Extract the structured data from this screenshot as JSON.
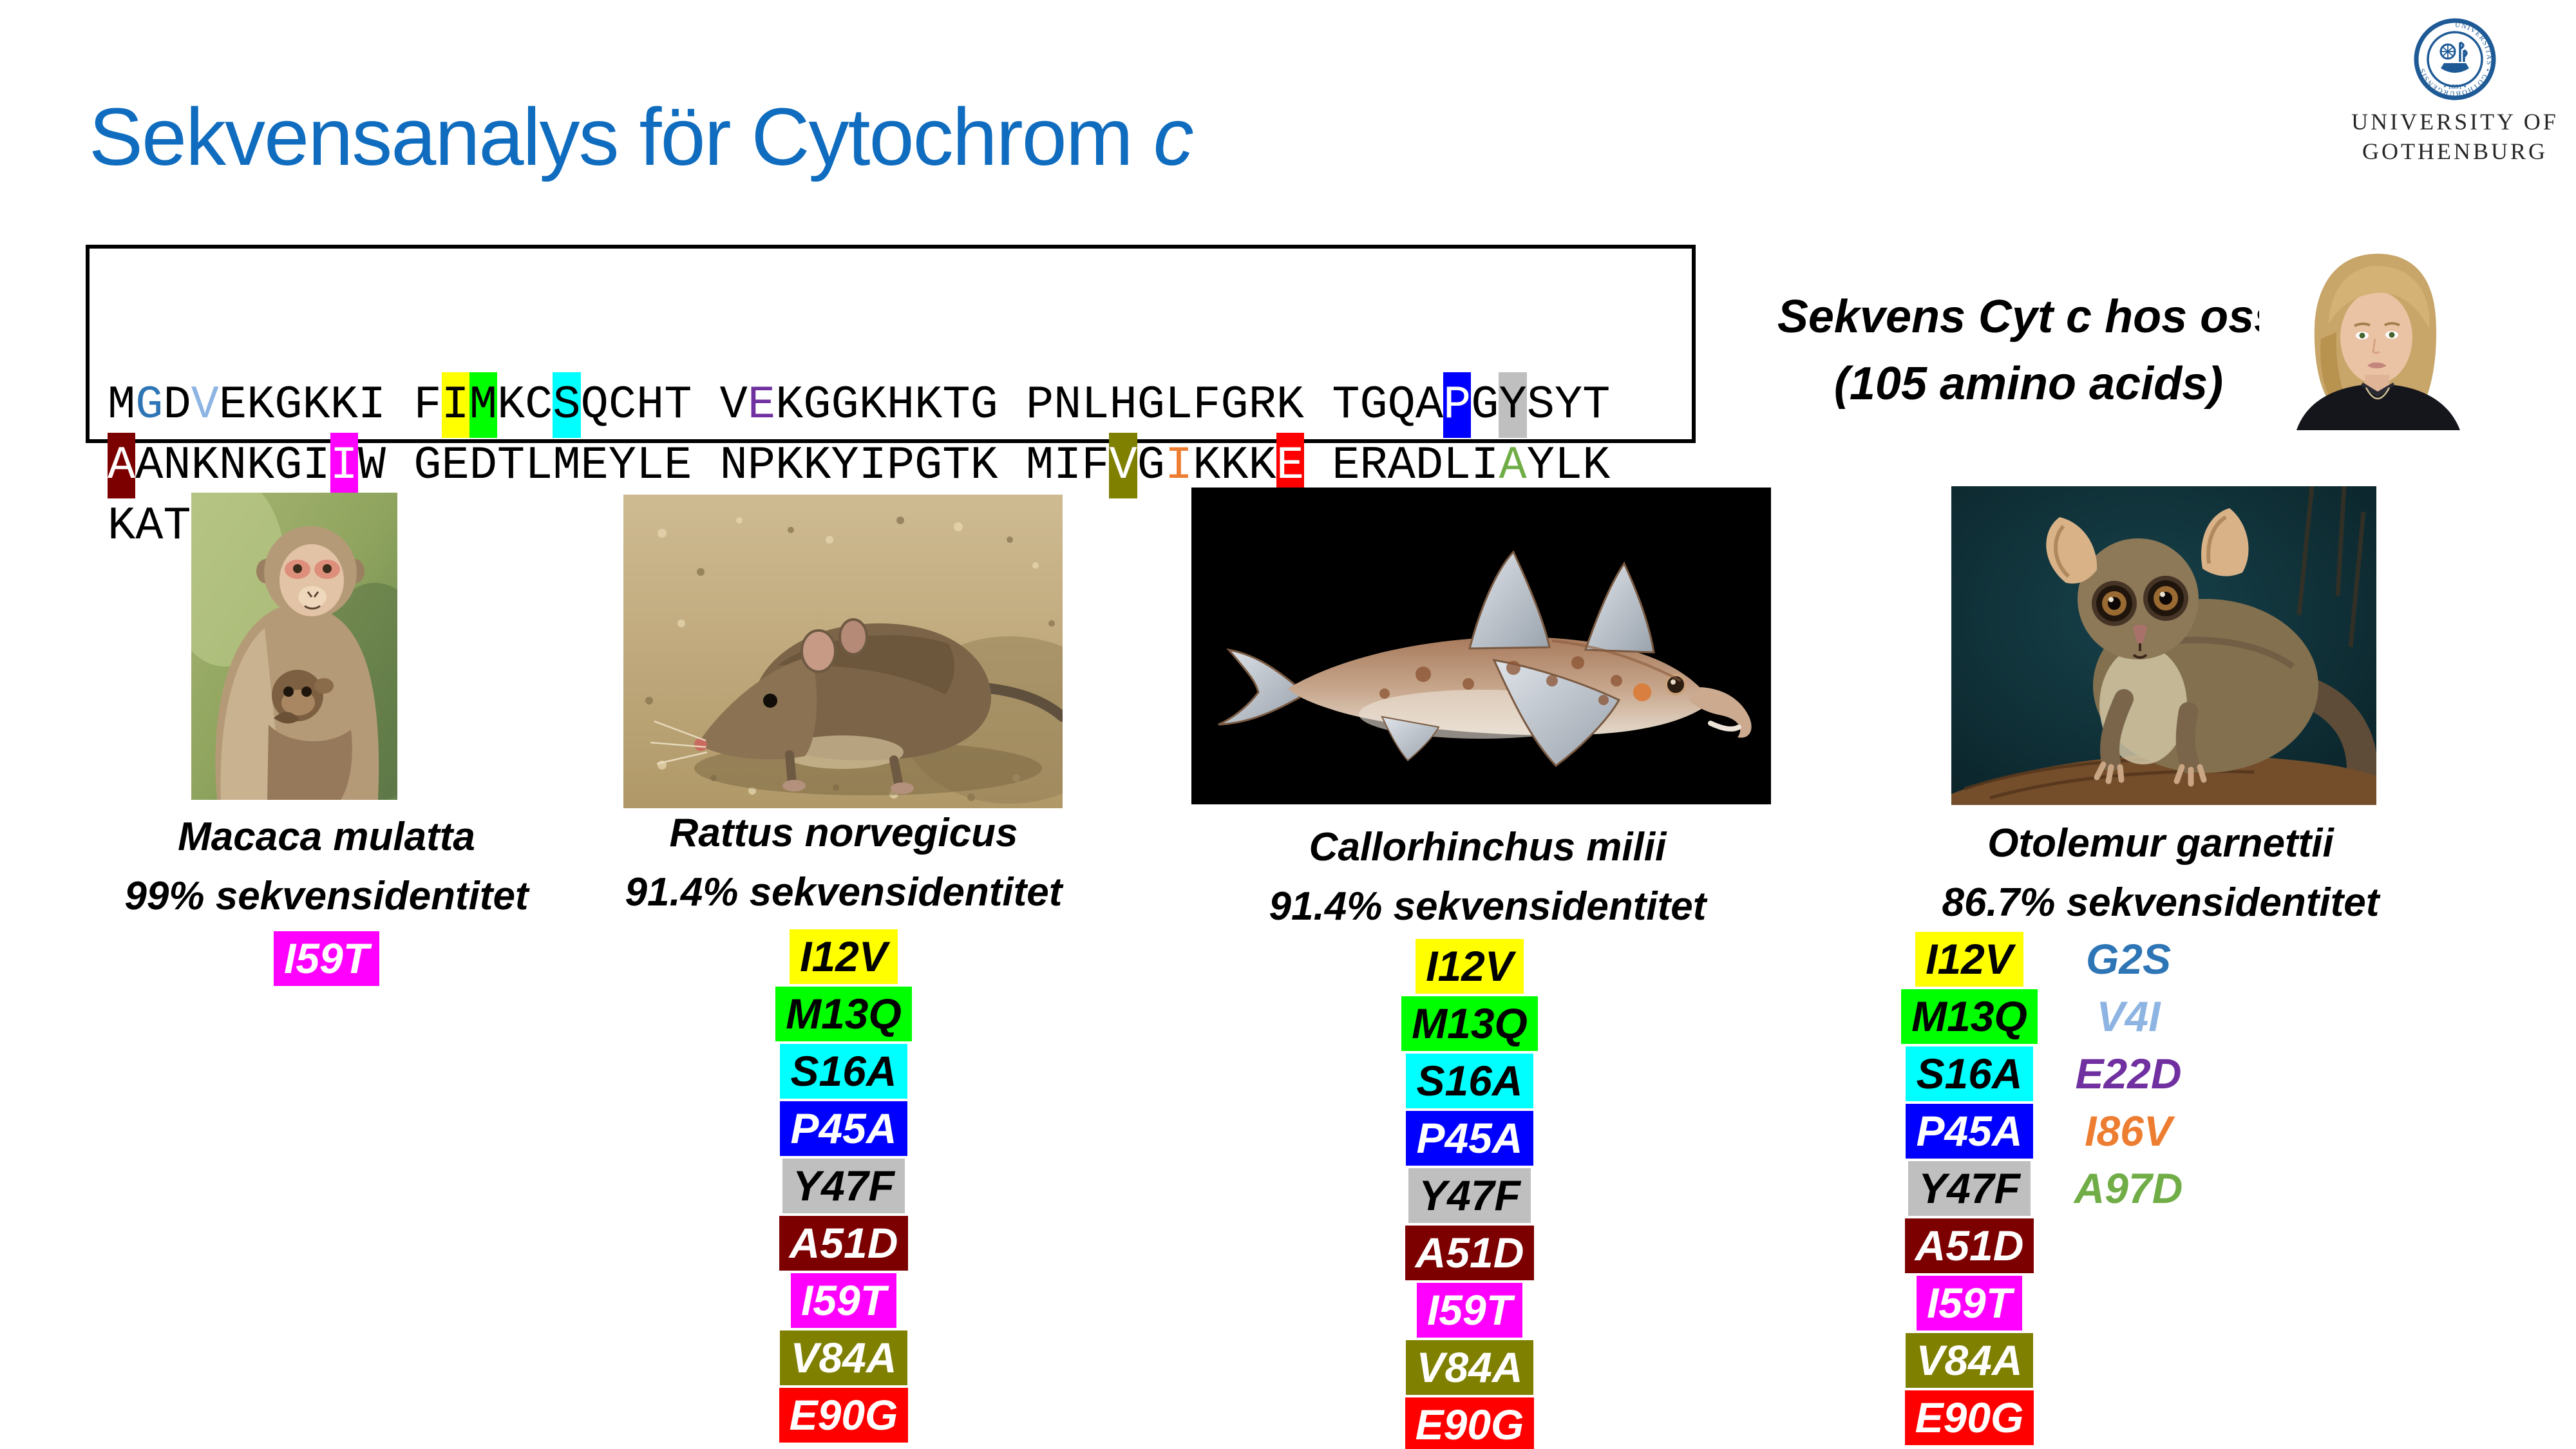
{
  "title": {
    "main": "Sekvensanalys för Cytochrom ",
    "italic_suffix": "c"
  },
  "logo": {
    "institution_line1": "UNIVERSITY OF",
    "institution_line2": "GOTHENBURG",
    "seal_ring_text": "UNIVERSITAS • GOTHOBURGENSIS",
    "seal_year": "• 1891 •",
    "seal_color": "#1E5A96"
  },
  "caption": {
    "line1": "Sekvens Cyt c hos oss",
    "line2": "(105 amino acids)"
  },
  "sequence": {
    "lines": [
      [
        {
          "t": "M"
        },
        {
          "t": "G",
          "fg": "#2E75B6"
        },
        {
          "t": "D"
        },
        {
          "t": "V",
          "fg": "#8DB4E2"
        },
        {
          "t": "EKGKKI F"
        },
        {
          "t": "I",
          "bg": "#FFFF00"
        },
        {
          "t": "M",
          "bg": "#00FF00"
        },
        {
          "t": "KC"
        },
        {
          "t": "S",
          "bg": "#00FFFF"
        },
        {
          "t": "QCHT V"
        },
        {
          "t": "E",
          "fg": "#7030A0"
        },
        {
          "t": "KGGKHKTG PNLHGLFGRK TGQA"
        },
        {
          "t": "P",
          "bg": "#0000FF",
          "fg": "#FFFFFF"
        },
        {
          "t": "G"
        },
        {
          "t": "Y",
          "bg": "#BFBFBF"
        },
        {
          "t": "SYT"
        }
      ],
      [
        {
          "t": "A",
          "bg": "#7D0000",
          "fg": "#FFFFFF"
        },
        {
          "t": "ANKNKGI"
        },
        {
          "t": "I",
          "bg": "#FF00FF",
          "fg": "#FFFFFF"
        },
        {
          "t": "W GEDTLMEYLE NPKKYIPGTK MIF"
        },
        {
          "t": "V",
          "bg": "#7F7F00",
          "fg": "#FFFFFF"
        },
        {
          "t": "G"
        },
        {
          "t": "I",
          "fg": "#ED7D31"
        },
        {
          "t": "KKK"
        },
        {
          "t": "E",
          "bg": "#FF0000",
          "fg": "#FFFFFF"
        },
        {
          "t": " ERADLI"
        },
        {
          "t": "A",
          "fg": "#70AD47"
        },
        {
          "t": "YLK"
        }
      ],
      [
        {
          "t": "KATNE"
        }
      ]
    ]
  },
  "columns": [
    {
      "species": "Macaca mulatta",
      "identity": "99% sekvensidentitet",
      "badges": [
        {
          "label": "I59T",
          "bg": "#FF00FF",
          "fg": "#FFFFFF"
        }
      ]
    },
    {
      "species": "Rattus norvegicus",
      "identity": "91.4% sekvensidentitet",
      "badges": [
        {
          "label": "I12V",
          "bg": "#FFFF00",
          "fg": "#000000"
        },
        {
          "label": "M13Q",
          "bg": "#00FF00",
          "fg": "#000000"
        },
        {
          "label": "S16A",
          "bg": "#00FFFF",
          "fg": "#000000"
        },
        {
          "label": "P45A",
          "bg": "#0000FF",
          "fg": "#FFFFFF"
        },
        {
          "label": "Y47F",
          "bg": "#BFBFBF",
          "fg": "#000000"
        },
        {
          "label": "A51D",
          "bg": "#7D0000",
          "fg": "#FFFFFF"
        },
        {
          "label": "I59T",
          "bg": "#FF00FF",
          "fg": "#FFFFFF"
        },
        {
          "label": "V84A",
          "bg": "#7F7F00",
          "fg": "#FFFFFF"
        },
        {
          "label": "E90G",
          "bg": "#FF0000",
          "fg": "#FFFFFF"
        }
      ]
    },
    {
      "species": "Callorhinchus milii",
      "identity": "91.4% sekvensidentitet",
      "badges": [
        {
          "label": "I12V",
          "bg": "#FFFF00",
          "fg": "#000000"
        },
        {
          "label": "M13Q",
          "bg": "#00FF00",
          "fg": "#000000"
        },
        {
          "label": "S16A",
          "bg": "#00FFFF",
          "fg": "#000000"
        },
        {
          "label": "P45A",
          "bg": "#0000FF",
          "fg": "#FFFFFF"
        },
        {
          "label": "Y47F",
          "bg": "#BFBFBF",
          "fg": "#000000"
        },
        {
          "label": "A51D",
          "bg": "#7D0000",
          "fg": "#FFFFFF"
        },
        {
          "label": "I59T",
          "bg": "#FF00FF",
          "fg": "#FFFFFF"
        },
        {
          "label": "V84A",
          "bg": "#7F7F00",
          "fg": "#FFFFFF"
        },
        {
          "label": "E90G",
          "bg": "#FF0000",
          "fg": "#FFFFFF"
        }
      ]
    },
    {
      "species": "Otolemur garnettii",
      "identity": "86.7% sekvensidentitet",
      "badges": [
        {
          "label": "I12V",
          "bg": "#FFFF00",
          "fg": "#000000"
        },
        {
          "label": "M13Q",
          "bg": "#00FF00",
          "fg": "#000000"
        },
        {
          "label": "S16A",
          "bg": "#00FFFF",
          "fg": "#000000"
        },
        {
          "label": "P45A",
          "bg": "#0000FF",
          "fg": "#FFFFFF"
        },
        {
          "label": "Y47F",
          "bg": "#BFBFBF",
          "fg": "#000000"
        },
        {
          "label": "A51D",
          "bg": "#7D0000",
          "fg": "#FFFFFF"
        },
        {
          "label": "I59T",
          "bg": "#FF00FF",
          "fg": "#FFFFFF"
        },
        {
          "label": "V84A",
          "bg": "#7F7F00",
          "fg": "#FFFFFF"
        },
        {
          "label": "E90G",
          "bg": "#FF0000",
          "fg": "#FFFFFF"
        }
      ],
      "extra_mutations": [
        {
          "label": "G2S",
          "color": "#2E75B6"
        },
        {
          "label": "V4I",
          "color": "#8DB4E2"
        },
        {
          "label": "E22D",
          "color": "#7030A0"
        },
        {
          "label": "I86V",
          "color": "#ED7D31"
        },
        {
          "label": "A97D",
          "color": "#70AD47"
        }
      ]
    }
  ]
}
